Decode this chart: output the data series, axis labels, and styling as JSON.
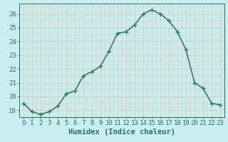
{
  "x": [
    0,
    1,
    2,
    3,
    4,
    5,
    6,
    7,
    8,
    9,
    10,
    11,
    12,
    13,
    14,
    15,
    16,
    17,
    18,
    19,
    20,
    21,
    22,
    23
  ],
  "y": [
    19.5,
    18.9,
    18.7,
    18.9,
    19.3,
    20.2,
    20.4,
    21.5,
    21.8,
    22.2,
    23.3,
    24.6,
    24.7,
    25.2,
    26.0,
    26.3,
    26.0,
    25.5,
    24.7,
    23.4,
    21.0,
    20.6,
    19.5,
    19.4
  ],
  "bg_color": "#c8eeed",
  "line_color": "#2d6e63",
  "marker_color": "#2d6e63",
  "grid_major_color": "#e8b8b8",
  "grid_minor_color": "#e8b8b8",
  "xlabel": "Humidex (Indice chaleur)",
  "xlim": [
    -0.5,
    23.5
  ],
  "ylim": [
    18.5,
    26.75
  ],
  "yticks": [
    19,
    20,
    21,
    22,
    23,
    24,
    25,
    26
  ],
  "xticks": [
    0,
    1,
    2,
    3,
    4,
    5,
    6,
    7,
    8,
    9,
    10,
    11,
    12,
    13,
    14,
    15,
    16,
    17,
    18,
    19,
    20,
    21,
    22,
    23
  ],
  "tick_label_fontsize": 6.5,
  "xlabel_fontsize": 7.5,
  "line_width": 1.1,
  "marker_size": 4
}
